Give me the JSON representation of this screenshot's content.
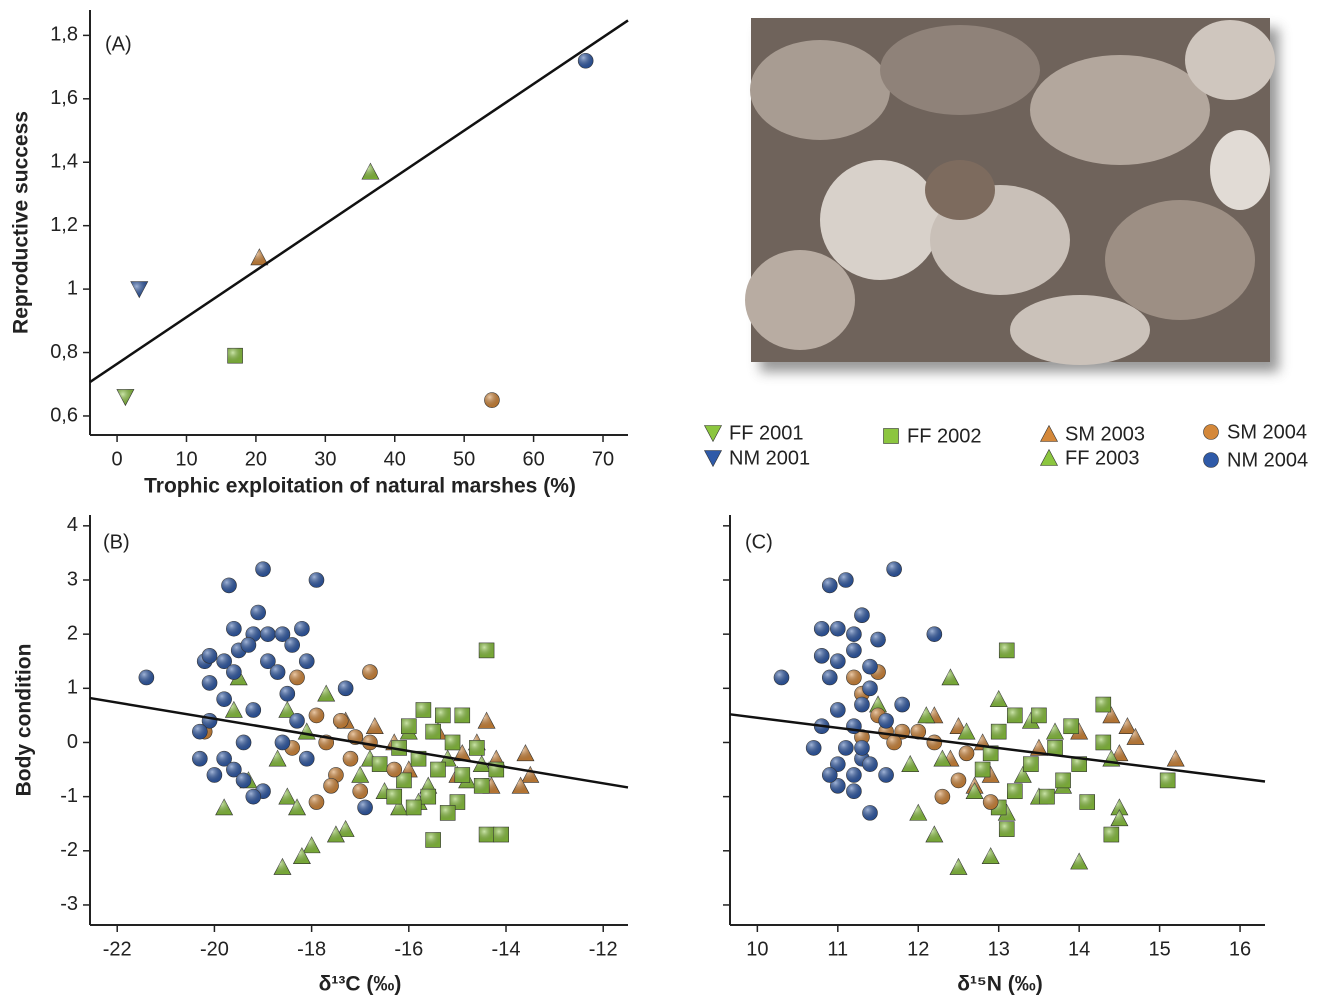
{
  "chart_data": [
    {
      "type": "scatter",
      "panel_label": "(A)",
      "xlabel": "Trophic exploitation of  natural marshes (%)",
      "ylabel": "Reproductive success",
      "xlim": [
        -3.9,
        73.6
      ],
      "ylim": [
        0.54,
        1.88
      ],
      "xticks": [
        0,
        10,
        20,
        30,
        40,
        50,
        60,
        70
      ],
      "yticks": [
        {
          "value": 0.6,
          "label": "0,6"
        },
        {
          "value": 0.8,
          "label": "0,8"
        },
        1,
        {
          "value": 1.2,
          "label": "1,2"
        },
        {
          "value": 1.4,
          "label": "1,4"
        },
        {
          "value": 1.6,
          "label": "1,6"
        },
        {
          "value": 1.8,
          "label": "1,8"
        }
      ],
      "show_ytick_labels": true,
      "fit": {
        "x": [
          -3.9,
          73.6
        ],
        "y": [
          0.707,
          1.847
        ]
      },
      "series": [
        {
          "name": "FF 2001",
          "color": "#8cc63f",
          "marker": "triangle-down",
          "x": [
            1.2
          ],
          "y": [
            0.66
          ]
        },
        {
          "name": "NM 2001",
          "color": "#2f5aa8",
          "marker": "triangle-down",
          "x": [
            3.2
          ],
          "y": [
            1.0
          ]
        },
        {
          "name": "FF 2002",
          "color": "#8cc63f",
          "marker": "square",
          "x": [
            17
          ],
          "y": [
            0.79
          ]
        },
        {
          "name": "SM 2003",
          "color": "#d4883a",
          "marker": "triangle-up",
          "x": [
            20.5
          ],
          "y": [
            1.1
          ]
        },
        {
          "name": "FF 2003",
          "color": "#8cc63f",
          "marker": "triangle-up",
          "x": [
            36.5
          ],
          "y": [
            1.37
          ]
        },
        {
          "name": "SM 2004",
          "color": "#d4883a",
          "marker": "circle",
          "x": [
            54
          ],
          "y": [
            0.65
          ]
        },
        {
          "name": "NM 2004",
          "color": "#2f5aa8",
          "marker": "circle",
          "x": [
            67.5
          ],
          "y": [
            1.72
          ]
        }
      ]
    },
    {
      "type": "scatter",
      "panel_label": "(B)",
      "xlabel": "δ¹³C (‰)",
      "ylabel": "Body condition",
      "xlim": [
        -22.56,
        -11.49
      ],
      "ylim": [
        -3.37,
        4.2
      ],
      "xticks": [
        -22,
        -20,
        -18,
        -16,
        -14,
        -12
      ],
      "yticks": [
        -3,
        -2,
        -1,
        0,
        1,
        2,
        3,
        4
      ],
      "show_ytick_labels": true,
      "fit": {
        "x": [
          -22.56,
          -11.49
        ],
        "y": [
          0.82,
          -0.83
        ]
      },
      "series": [
        {
          "color": "#d4883a",
          "marker": "triangle-up",
          "x": [
            -17.3,
            -16.7,
            -16.3,
            -15.4,
            -14.9,
            -14.4,
            -14.2,
            -13.6,
            -13.5,
            -13.7,
            -14.3,
            -15.0,
            -16.0,
            -14.6
          ],
          "y": [
            0.4,
            0.3,
            0.0,
            0.2,
            -0.2,
            0.4,
            -0.3,
            -0.2,
            -0.6,
            -0.8,
            -0.8,
            -0.6,
            -0.5,
            0.0
          ]
        },
        {
          "color": "#8cc63f",
          "marker": "triangle-up",
          "x": [
            -19.5,
            -19.6,
            -18.5,
            -17.7,
            -18.1,
            -18.7,
            -19.3,
            -18.5,
            -19.8,
            -18.3,
            -17.3,
            -18.0,
            -18.6,
            -18.2,
            -17.0,
            -16.5,
            -16.2,
            -15.8,
            -16.8,
            -15.6,
            -15.2,
            -14.8,
            -14.5,
            -17.5,
            -16.0
          ],
          "y": [
            1.2,
            0.6,
            0.6,
            0.9,
            0.2,
            -0.3,
            -0.7,
            -1.0,
            -1.2,
            -1.2,
            -1.6,
            -1.9,
            -2.3,
            -2.1,
            -0.6,
            -0.9,
            -1.2,
            -1.1,
            -0.3,
            -0.8,
            -0.3,
            -0.7,
            -0.4,
            -1.7,
            0.2
          ]
        },
        {
          "color": "#8cc63f",
          "marker": "square",
          "x": [
            -14.4,
            -15.7,
            -15.3,
            -14.9,
            -16.0,
            -15.5,
            -15.1,
            -14.6,
            -16.2,
            -15.8,
            -15.4,
            -14.9,
            -14.5,
            -16.1,
            -15.6,
            -15.0,
            -15.2,
            -15.5,
            -14.4,
            -14.1,
            -16.3,
            -15.9,
            -14.2,
            -16.6
          ],
          "y": [
            1.7,
            0.6,
            0.5,
            0.5,
            0.3,
            0.2,
            0.0,
            -0.1,
            -0.1,
            -0.3,
            -0.5,
            -0.6,
            -0.8,
            -0.7,
            -1.0,
            -1.1,
            -1.3,
            -1.8,
            -1.7,
            -1.7,
            -1.0,
            -1.2,
            -0.5,
            -0.4
          ]
        },
        {
          "color": "#d4883a",
          "marker": "circle",
          "x": [
            -16.8,
            -18.3,
            -20.2,
            -17.9,
            -17.4,
            -17.7,
            -18.4,
            -17.2,
            -17.5,
            -17.6,
            -17.0,
            -17.9,
            -16.8,
            -16.3,
            -17.1
          ],
          "y": [
            1.3,
            1.2,
            0.2,
            0.5,
            0.4,
            0.0,
            -0.1,
            -0.3,
            -0.6,
            -0.8,
            -0.9,
            -1.1,
            0.0,
            -0.5,
            0.1
          ]
        },
        {
          "color": "#2f5aa8",
          "marker": "circle",
          "x": [
            -21.4,
            -20.2,
            -20.1,
            -19.7,
            -19,
            -17.9,
            -19.1,
            -19.6,
            -19.2,
            -18.9,
            -18.6,
            -18.2,
            -18.4,
            -19.5,
            -19.8,
            -19.3,
            -18.9,
            -18.1,
            -19.6,
            -18.7,
            -20.1,
            -17.3,
            -18.5,
            -19.8,
            -20.1,
            -20.3,
            -19.2,
            -18.3,
            -18.6,
            -19.4,
            -19.8,
            -20.3,
            -20.0,
            -19.6,
            -19.4,
            -19.0,
            -19.2,
            -18.1,
            -16.9
          ],
          "y": [
            1.2,
            1.5,
            1.6,
            2.9,
            3.2,
            3.0,
            2.4,
            2.1,
            2.0,
            2.0,
            2.0,
            2.1,
            1.8,
            1.7,
            1.5,
            1.8,
            1.5,
            1.5,
            1.3,
            1.3,
            1.1,
            1.0,
            0.9,
            0.8,
            0.4,
            0.2,
            0.6,
            0.4,
            0.0,
            0.0,
            -0.3,
            -0.3,
            -0.6,
            -0.5,
            -0.7,
            -0.9,
            -1.0,
            -0.3,
            -1.2
          ]
        }
      ]
    },
    {
      "type": "scatter",
      "panel_label": "(C)",
      "xlabel": "δ¹⁵N (‰)",
      "xlim": [
        9.66,
        16.31
      ],
      "ylim": [
        -3.37,
        4.2
      ],
      "xticks": [
        10,
        11,
        12,
        13,
        14,
        15,
        16
      ],
      "yticks": [
        -3,
        -2,
        -1,
        0,
        1,
        2,
        3,
        4
      ],
      "show_ytick_labels": false,
      "fit": {
        "x": [
          9.66,
          16.31
        ],
        "y": [
          0.52,
          -0.72
        ]
      },
      "series": [
        {
          "color": "#d4883a",
          "marker": "triangle-up",
          "x": [
            12.2,
            12.5,
            12.8,
            12.4,
            14.0,
            14.4,
            14.6,
            14.7,
            15.2,
            13.5,
            12.9,
            12.7,
            14.5
          ],
          "y": [
            0.5,
            0.3,
            0.0,
            -0.3,
            0.2,
            0.5,
            0.3,
            0.1,
            -0.3,
            -0.1,
            -0.6,
            -0.8,
            -0.2
          ]
        },
        {
          "color": "#8cc63f",
          "marker": "triangle-up",
          "x": [
            12.4,
            11.5,
            12.1,
            12.3,
            11.9,
            12.0,
            12.2,
            12.5,
            12.9,
            14.0,
            14.5,
            13.0,
            13.4,
            13.7,
            13.3,
            12.7,
            13.1,
            13.8,
            14.4,
            12.6,
            14.5,
            13.5
          ],
          "y": [
            1.2,
            0.7,
            0.5,
            -0.3,
            -0.4,
            -1.3,
            -1.7,
            -2.3,
            -2.1,
            -2.2,
            -1.2,
            0.8,
            0.4,
            0.2,
            -0.6,
            -0.9,
            -1.3,
            -0.8,
            -0.3,
            0.2,
            -1.4,
            -1.0
          ]
        },
        {
          "color": "#8cc63f",
          "marker": "square",
          "x": [
            13.1,
            14.3,
            13.2,
            13.5,
            13.9,
            13.0,
            13.7,
            14.3,
            12.9,
            13.4,
            13.8,
            13.2,
            13.6,
            13.0,
            13.1,
            14.1,
            14.4,
            15.1,
            14.0,
            12.8
          ],
          "y": [
            1.7,
            0.7,
            0.5,
            0.5,
            0.3,
            0.2,
            -0.1,
            0.0,
            -0.2,
            -0.4,
            -0.7,
            -0.9,
            -1.0,
            -1.2,
            -1.6,
            -1.1,
            -1.7,
            -0.7,
            -0.4,
            -0.5
          ]
        },
        {
          "color": "#d4883a",
          "marker": "circle",
          "x": [
            11.2,
            11.5,
            11.3,
            11.5,
            11.6,
            11.8,
            12.0,
            12.2,
            12.5,
            12.3,
            12.9,
            11.3,
            11.7,
            12.6
          ],
          "y": [
            1.2,
            1.3,
            0.9,
            0.5,
            0.2,
            0.2,
            0.2,
            0.0,
            -0.7,
            -1.0,
            -1.1,
            0.1,
            0.0,
            -0.2
          ]
        },
        {
          "color": "#2f5aa8",
          "marker": "circle",
          "x": [
            10.3,
            10.9,
            11.1,
            11.7,
            12.2,
            10.8,
            11.0,
            11.2,
            11.3,
            11.5,
            10.8,
            11.0,
            11.2,
            11.4,
            10.9,
            11.4,
            11.0,
            11.3,
            11.8,
            10.8,
            11.2,
            11.1,
            10.7,
            11.3,
            11.0,
            11.2,
            11.4,
            11.0,
            11.2,
            11.6,
            11.4,
            10.9,
            11.3,
            11.6
          ],
          "y": [
            1.2,
            2.9,
            3.0,
            3.2,
            2.0,
            2.1,
            2.1,
            2.0,
            2.35,
            1.9,
            1.6,
            1.5,
            1.7,
            1.4,
            1.2,
            1.0,
            0.6,
            0.7,
            0.7,
            0.3,
            0.3,
            -0.1,
            -0.1,
            -0.3,
            -0.4,
            -0.6,
            -0.4,
            -0.8,
            -0.9,
            -0.6,
            -1.3,
            -0.6,
            -0.1,
            0.4
          ]
        }
      ]
    }
  ]
}
